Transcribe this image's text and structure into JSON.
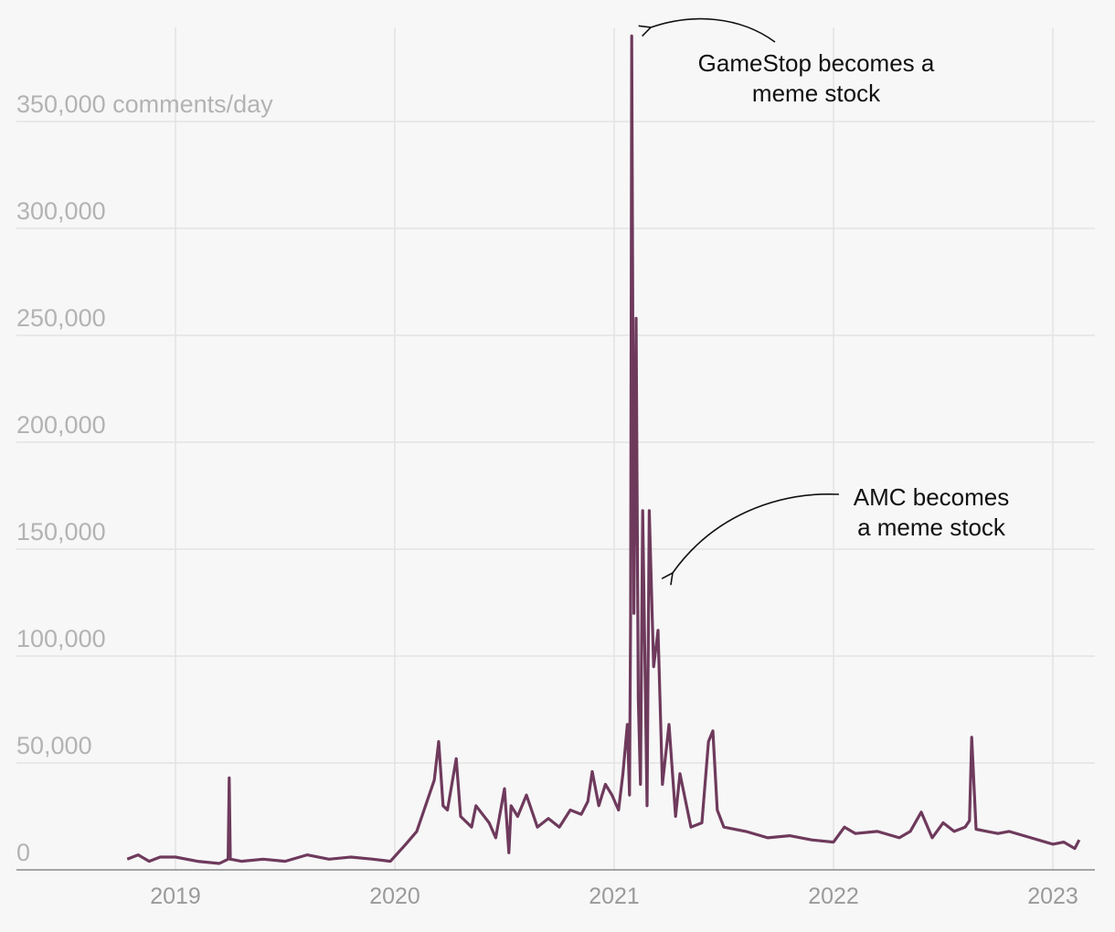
{
  "chart_data": {
    "type": "line",
    "title": "",
    "ylabel_suffix": " comments/day",
    "xlabel": "",
    "ylim": [
      0,
      395000
    ],
    "xlim": [
      2018.45,
      2023.18
    ],
    "y_ticks": [
      {
        "value": 0,
        "label": "0"
      },
      {
        "value": 50000,
        "label": "50,000"
      },
      {
        "value": 100000,
        "label": "100,000"
      },
      {
        "value": 150000,
        "label": "150,000"
      },
      {
        "value": 200000,
        "label": "200,000"
      },
      {
        "value": 250000,
        "label": "250,000"
      },
      {
        "value": 300000,
        "label": "300,000"
      },
      {
        "value": 350000,
        "label": "350,000"
      }
    ],
    "x_ticks": [
      {
        "value": 2019,
        "label": "2019"
      },
      {
        "value": 2020,
        "label": "2020"
      },
      {
        "value": 2021,
        "label": "2021"
      },
      {
        "value": 2022,
        "label": "2022"
      },
      {
        "value": 2023,
        "label": "2023"
      }
    ],
    "series": [
      {
        "name": "comments per day",
        "color": "#6e3a5c",
        "x": [
          2018.78,
          2018.83,
          2018.88,
          2018.93,
          2019.0,
          2019.1,
          2019.2,
          2019.24,
          2019.245,
          2019.25,
          2019.3,
          2019.4,
          2019.5,
          2019.6,
          2019.7,
          2019.8,
          2019.9,
          2019.98,
          2020.05,
          2020.1,
          2020.14,
          2020.18,
          2020.2,
          2020.22,
          2020.24,
          2020.26,
          2020.28,
          2020.3,
          2020.33,
          2020.35,
          2020.37,
          2020.4,
          2020.43,
          2020.46,
          2020.5,
          2020.52,
          2020.53,
          2020.56,
          2020.6,
          2020.65,
          2020.7,
          2020.75,
          2020.8,
          2020.85,
          2020.88,
          2020.9,
          2020.93,
          2020.96,
          2020.99,
          2021.02,
          2021.04,
          2021.06,
          2021.07,
          2021.075,
          2021.08,
          2021.09,
          2021.1,
          2021.11,
          2021.12,
          2021.13,
          2021.15,
          2021.16,
          2021.18,
          2021.2,
          2021.22,
          2021.25,
          2021.28,
          2021.3,
          2021.35,
          2021.4,
          2021.43,
          2021.45,
          2021.47,
          2021.5,
          2021.6,
          2021.7,
          2021.8,
          2021.9,
          2022.0,
          2022.05,
          2022.1,
          2022.2,
          2022.3,
          2022.35,
          2022.4,
          2022.45,
          2022.5,
          2022.55,
          2022.6,
          2022.62,
          2022.63,
          2022.65,
          2022.7,
          2022.75,
          2022.8,
          2022.9,
          2023.0,
          2023.05,
          2023.1,
          2023.12
        ],
        "y": [
          5000,
          7000,
          4000,
          6000,
          6000,
          4000,
          3000,
          5000,
          43000,
          5000,
          4000,
          5000,
          4000,
          7000,
          5000,
          6000,
          5000,
          4000,
          12000,
          18000,
          30000,
          42000,
          60000,
          30000,
          28000,
          40000,
          52000,
          25000,
          22000,
          20000,
          30000,
          26000,
          22000,
          15000,
          38000,
          8000,
          30000,
          25000,
          35000,
          20000,
          24000,
          20000,
          28000,
          26000,
          32000,
          46000,
          30000,
          40000,
          35000,
          28000,
          45000,
          68000,
          35000,
          120000,
          390000,
          120000,
          258000,
          80000,
          40000,
          168000,
          30000,
          168000,
          95000,
          112000,
          40000,
          68000,
          25000,
          45000,
          20000,
          22000,
          60000,
          65000,
          28000,
          20000,
          18000,
          15000,
          16000,
          14000,
          13000,
          20000,
          17000,
          18000,
          15000,
          18000,
          27000,
          15000,
          22000,
          18000,
          20000,
          23000,
          62000,
          19000,
          18000,
          17000,
          18000,
          15000,
          12000,
          13000,
          10000,
          14000
        ]
      }
    ],
    "annotations": [
      {
        "id": "gamestop",
        "lines": [
          "GameStop becomes a",
          "meme stock"
        ],
        "target_x": 2021.08,
        "target_y": 390000
      },
      {
        "id": "amc",
        "lines": [
          "AMC becomes",
          "a meme stock"
        ],
        "target_x": 2021.26,
        "target_y": 140000
      }
    ]
  }
}
